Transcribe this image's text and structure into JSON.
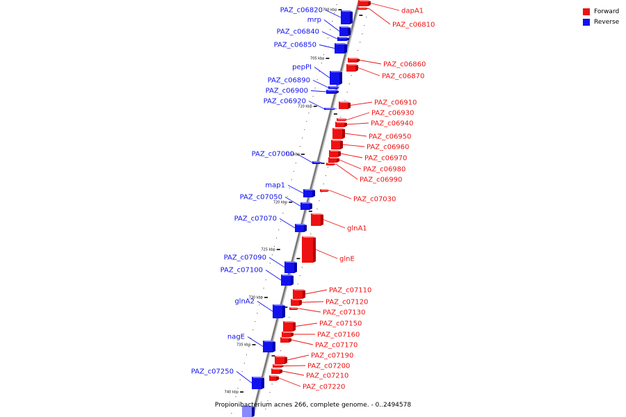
{
  "colors": {
    "forward": "#ee1111",
    "reverse": "#1111ee",
    "backbone": "#888888"
  },
  "legend": {
    "forward_label": "Forward",
    "reverse_label": "Reverse"
  },
  "caption": "Propionibacterium acnes 266, complete genome. - 0..2494578",
  "kbp_markers": [
    "700 kbp",
    "705 kbp",
    "710 kbp",
    "715 kbp",
    "720 kbp",
    "725 kbp",
    "730 kbp",
    "735 kbp",
    "740 kbp"
  ],
  "reverse_genes": [
    "PAZ_c06820",
    "mrp",
    "PAZ_c06840",
    "PAZ_c06850",
    "pepPI",
    "PAZ_c06890",
    "PAZ_c06900",
    "PAZ_c06920",
    "PAZ_c07000",
    "map1",
    "PAZ_c07050",
    "PAZ_c07070",
    "PAZ_c07090",
    "PAZ_c07100",
    "glnA2",
    "nagE",
    "PAZ_c07250"
  ],
  "forward_genes": [
    "dapA1",
    "PAZ_c06810",
    "PAZ_c06860",
    "PAZ_c06870",
    "PAZ_c06910",
    "PAZ_c06930",
    "PAZ_c06940",
    "PAZ_c06950",
    "PAZ_c06960",
    "PAZ_c06970",
    "PAZ_c06980",
    "PAZ_c06990",
    "PAZ_c07030",
    "glnA1",
    "glnE",
    "PAZ_c07110",
    "PAZ_c07120",
    "PAZ_c07130",
    "PAZ_c07150",
    "PAZ_c07160",
    "PAZ_c07170",
    "PAZ_c07190",
    "PAZ_c07200",
    "PAZ_c07210",
    "PAZ_c07220"
  ]
}
